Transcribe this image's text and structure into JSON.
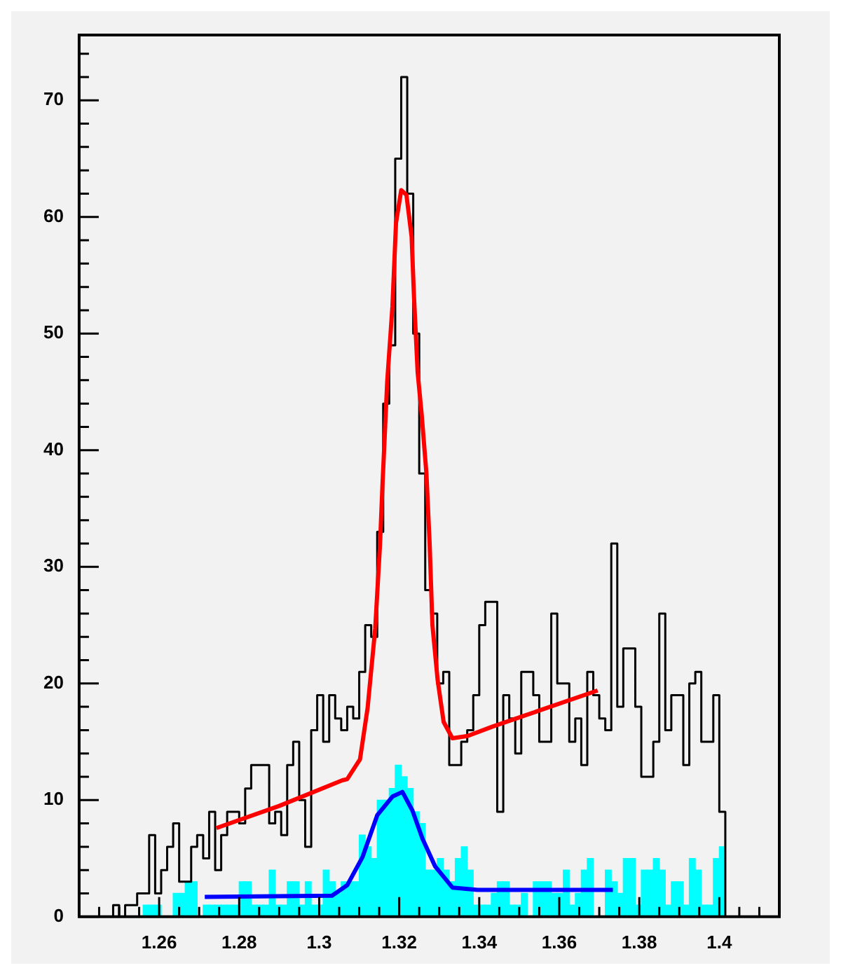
{
  "chart_data": {
    "type": "histogram",
    "xlim": [
      1.24,
      1.415
    ],
    "ylim": [
      0,
      75.6
    ],
    "marker": "none",
    "xticks": [
      {
        "value": 1.245,
        "label": null
      },
      {
        "value": 1.25,
        "label": null
      },
      {
        "value": 1.255,
        "label": null
      },
      1.26,
      {
        "value": 1.265,
        "label": null
      },
      {
        "value": 1.27,
        "label": null
      },
      {
        "value": 1.275,
        "label": null
      },
      1.28,
      {
        "value": 1.285,
        "label": null
      },
      {
        "value": 1.29,
        "label": null
      },
      {
        "value": 1.295,
        "label": null
      },
      1.3,
      {
        "value": 1.305,
        "label": null
      },
      {
        "value": 1.31,
        "label": null
      },
      {
        "value": 1.315,
        "label": null
      },
      1.32,
      {
        "value": 1.325,
        "label": null
      },
      {
        "value": 1.33,
        "label": null
      },
      {
        "value": 1.335,
        "label": null
      },
      1.34,
      {
        "value": 1.345,
        "label": null
      },
      {
        "value": 1.35,
        "label": null
      },
      {
        "value": 1.355,
        "label": null
      },
      1.36,
      {
        "value": 1.365,
        "label": null
      },
      {
        "value": 1.37,
        "label": null
      },
      {
        "value": 1.375,
        "label": null
      },
      1.38,
      {
        "value": 1.385,
        "label": null
      },
      {
        "value": 1.39,
        "label": null
      },
      {
        "value": 1.395,
        "label": null
      },
      1.4,
      {
        "value": 1.405,
        "label": null
      },
      {
        "value": 1.41,
        "label": null
      }
    ],
    "yticks": [
      0,
      {
        "value": 2,
        "label": null
      },
      {
        "value": 4,
        "label": null
      },
      {
        "value": 6,
        "label": null
      },
      {
        "value": 8,
        "label": null
      },
      10,
      {
        "value": 12,
        "label": null
      },
      {
        "value": 14,
        "label": null
      },
      {
        "value": 16,
        "label": null
      },
      {
        "value": 18,
        "label": null
      },
      20,
      {
        "value": 22,
        "label": null
      },
      {
        "value": 24,
        "label": null
      },
      {
        "value": 26,
        "label": null
      },
      {
        "value": 28,
        "label": null
      },
      30,
      {
        "value": 32,
        "label": null
      },
      {
        "value": 34,
        "label": null
      },
      {
        "value": 36,
        "label": null
      },
      {
        "value": 38,
        "label": null
      },
      40,
      {
        "value": 42,
        "label": null
      },
      {
        "value": 44,
        "label": null
      },
      {
        "value": 46,
        "label": null
      },
      {
        "value": 48,
        "label": null
      },
      50,
      {
        "value": 52,
        "label": null
      },
      {
        "value": 54,
        "label": null
      },
      {
        "value": 56,
        "label": null
      },
      {
        "value": 58,
        "label": null
      },
      60,
      {
        "value": 62,
        "label": null
      },
      {
        "value": 64,
        "label": null
      },
      {
        "value": 66,
        "label": null
      },
      {
        "value": 68,
        "label": null
      },
      70,
      {
        "value": 72,
        "label": null
      },
      {
        "value": 74,
        "label": null
      }
    ],
    "bins": [
      1.247,
      1.2485,
      1.25,
      1.2515,
      1.253,
      1.2545,
      1.256,
      1.2575,
      1.259,
      1.2605,
      1.262,
      1.2635,
      1.265,
      1.2665,
      1.268,
      1.2695,
      1.271,
      1.2725,
      1.274,
      1.2755,
      1.277,
      1.2785,
      1.28,
      1.2815,
      1.283,
      1.2845,
      1.286,
      1.2875,
      1.289,
      1.2905,
      1.292,
      1.2935,
      1.295,
      1.2965,
      1.298,
      1.2995,
      1.301,
      1.3025,
      1.304,
      1.3055,
      1.307,
      1.3085,
      1.31,
      1.3115,
      1.313,
      1.3145,
      1.316,
      1.3175,
      1.319,
      1.3205,
      1.322,
      1.3235,
      1.325,
      1.3265,
      1.328,
      1.3295,
      1.331,
      1.3325,
      1.334,
      1.3355,
      1.337,
      1.3385,
      1.34,
      1.3415,
      1.343,
      1.3445,
      1.346,
      1.3475,
      1.349,
      1.3505,
      1.352,
      1.3535,
      1.355,
      1.3565,
      1.358,
      1.3595,
      1.361,
      1.3625,
      1.364,
      1.3655,
      1.367,
      1.3685,
      1.37,
      1.3715,
      1.373,
      1.3745,
      1.376,
      1.3775,
      1.379,
      1.3805,
      1.382,
      1.3835,
      1.385,
      1.3865,
      1.388,
      1.3895,
      1.391,
      1.3925,
      1.394,
      1.3955,
      1.397,
      1.3985,
      1.4,
      1.4015
    ],
    "series": [
      {
        "type": "step",
        "color": "#000000",
        "x": [
          1.247,
          1.2485,
          1.25,
          1.2515,
          1.253,
          1.2545,
          1.256,
          1.2575,
          1.259,
          1.2605,
          1.262,
          1.2635,
          1.265,
          1.2665,
          1.268,
          1.2695,
          1.271,
          1.2725,
          1.274,
          1.2755,
          1.277,
          1.2785,
          1.28,
          1.2815,
          1.283,
          1.2845,
          1.286,
          1.2875,
          1.289,
          1.2905,
          1.292,
          1.2935,
          1.295,
          1.2965,
          1.298,
          1.2995,
          1.301,
          1.3025,
          1.304,
          1.3055,
          1.307,
          1.3085,
          1.31,
          1.3115,
          1.313,
          1.3145,
          1.316,
          1.3175,
          1.319,
          1.3205,
          1.322,
          1.3235,
          1.325,
          1.3265,
          1.328,
          1.3295,
          1.331,
          1.3325,
          1.334,
          1.3355,
          1.337,
          1.3385,
          1.34,
          1.3415,
          1.343,
          1.3445,
          1.346,
          1.3475,
          1.349,
          1.3505,
          1.352,
          1.3535,
          1.355,
          1.3565,
          1.358,
          1.3595,
          1.361,
          1.3625,
          1.364,
          1.3655,
          1.367,
          1.3685,
          1.37,
          1.3715,
          1.373,
          1.3745,
          1.376,
          1.3775,
          1.379,
          1.3805,
          1.382,
          1.3835,
          1.385,
          1.3865,
          1.388,
          1.3895,
          1.391,
          1.3925,
          1.394,
          1.3955,
          1.397,
          1.3985,
          1.4,
          1.4015
        ],
        "values": [
          0,
          1,
          0,
          1,
          1,
          2,
          2,
          7,
          2,
          4,
          6,
          8,
          3,
          3,
          6,
          7,
          5,
          9,
          4,
          7,
          9,
          9,
          8,
          11,
          13,
          13,
          13,
          8,
          9,
          7,
          13,
          15,
          10,
          6,
          16,
          19,
          15,
          19,
          17,
          16,
          18,
          17,
          21,
          25,
          24,
          33,
          44,
          49,
          65,
          72,
          62,
          50,
          38,
          28,
          26,
          20,
          21,
          13,
          13,
          15,
          16,
          19,
          25,
          27,
          27,
          9,
          19,
          17,
          14,
          21,
          21,
          19,
          15,
          15,
          26,
          20,
          20,
          15,
          17,
          13,
          21,
          19,
          17,
          16,
          32,
          18,
          23,
          23,
          18,
          12,
          12,
          15,
          26,
          16,
          19,
          19,
          13,
          20,
          21,
          15,
          15,
          19,
          9,
          0
        ]
      },
      {
        "color": "#00ffff",
        "values": [
          0,
          0,
          0,
          0,
          0,
          0,
          1,
          1,
          1,
          0,
          0,
          2,
          2,
          3,
          3,
          0,
          1,
          1,
          1,
          1,
          1,
          1,
          3,
          3,
          1,
          1,
          1,
          4,
          1,
          1,
          3,
          3,
          1,
          3,
          1,
          1,
          4,
          3,
          2,
          3,
          3,
          3,
          7,
          6,
          5,
          10,
          10,
          11,
          13,
          12,
          11,
          9,
          8,
          4,
          4,
          5,
          4,
          3,
          5,
          6,
          4,
          1,
          1,
          1,
          2,
          3,
          3,
          1,
          1,
          2,
          0,
          3,
          3,
          3,
          2,
          2,
          4,
          1,
          2,
          4,
          5,
          0,
          0,
          4,
          3,
          2,
          5,
          5,
          1,
          4,
          4,
          5,
          4,
          1,
          3,
          3,
          1,
          5,
          4,
          1,
          1,
          5,
          6
        ]
      },
      {
        "type": "line",
        "color": "#ff0000",
        "x": [
          1.2743,
          1.29,
          1.3058,
          1.307,
          1.3102,
          1.3121,
          1.314,
          1.3152,
          1.3158,
          1.317,
          1.3183,
          1.3192,
          1.3205,
          1.3218,
          1.3231,
          1.3237,
          1.3246,
          1.3256,
          1.3268,
          1.3276,
          1.3283,
          1.3296,
          1.3311,
          1.3333,
          1.3371,
          1.3433,
          1.3696
        ],
        "values": [
          7.6,
          9.5,
          11.7,
          11.8,
          13.5,
          17.9,
          24.7,
          31.9,
          36.9,
          45.9,
          52.3,
          59.5,
          62.3,
          61.9,
          58.3,
          53.1,
          46.7,
          43.1,
          38,
          32,
          25,
          20.3,
          16.7,
          15.3,
          15.5,
          16.3,
          19.4
        ]
      },
      {
        "type": "line",
        "color": "#0000ff",
        "x": [
          1.2714,
          1.3032,
          1.307,
          1.3108,
          1.3145,
          1.3183,
          1.3208,
          1.3233,
          1.3258,
          1.329,
          1.3333,
          1.3396,
          1.3734
        ],
        "values": [
          1.7,
          1.8,
          2.7,
          5.1,
          8.7,
          10.3,
          10.7,
          9.1,
          6.7,
          4.3,
          2.5,
          2.3,
          2.3
        ]
      }
    ]
  }
}
